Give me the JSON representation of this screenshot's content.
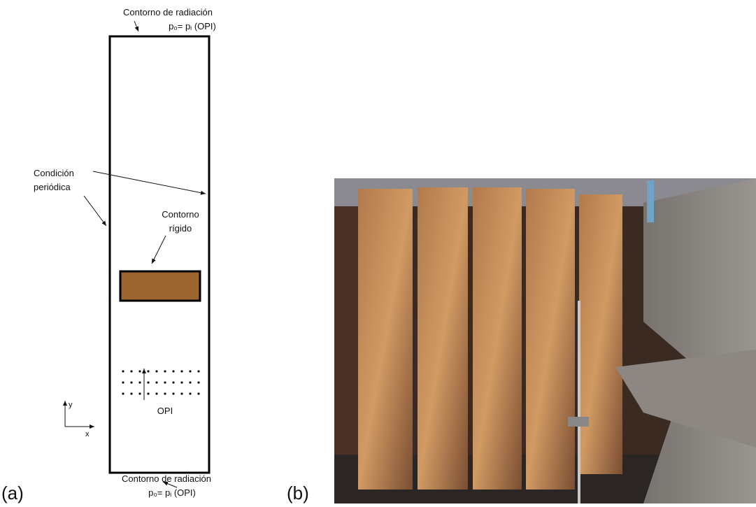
{
  "panel_a": {
    "label": "(a)",
    "top_boundary": {
      "title": "Contorno de radiación",
      "condition": "p₀= pᵢ  (OPI)"
    },
    "periodic": {
      "line1": "Condición",
      "line2": "periódica"
    },
    "rigid": {
      "line1": "Contorno",
      "line2": "rígido"
    },
    "source": "OPI",
    "axes": {
      "y": "y",
      "x": "x"
    },
    "bottom_boundary": {
      "title": "Contorno de radiación",
      "condition": "p₀= pᵢ  (OPI)"
    }
  },
  "panel_b": {
    "label": "(b)"
  }
}
